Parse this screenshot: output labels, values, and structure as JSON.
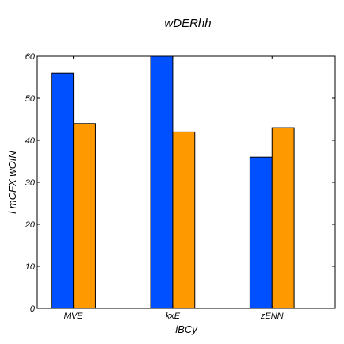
{
  "chart_data": {
    "type": "bar",
    "title": "wDERhh",
    "xlabel": "iBCy",
    "ylabel": "i  mCFX wOIN",
    "categories": [
      "MVE",
      "kxE",
      "zENN"
    ],
    "series": [
      {
        "values": [
          56,
          60,
          36
        ],
        "color": "#0050ff"
      },
      {
        "values": [
          44,
          42,
          43
        ],
        "color": "#ff9900"
      }
    ],
    "ylim": [
      0,
      60
    ],
    "yticks": [
      0,
      10,
      20,
      30,
      40,
      50,
      60
    ],
    "grid": false
  }
}
